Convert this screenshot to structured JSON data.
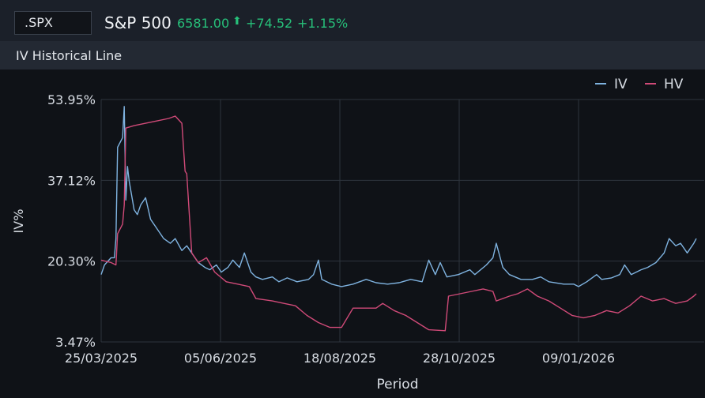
{
  "header": {
    "symbol": ".SPX",
    "name": "S&P 500",
    "price": "6581.00",
    "arrow": "⬆",
    "change": "+74.52",
    "change_pct": "+1.15%"
  },
  "panel": {
    "title": "IV Historical Line"
  },
  "colors": {
    "iv": "#7fb3e0",
    "hv": "#d04a78",
    "positive": "#27c07a",
    "grid": "#2e343d"
  },
  "chart_data": {
    "type": "line",
    "xlabel": "Period",
    "ylabel": "IV%",
    "x_ticks": [
      "25/03/2025",
      "05/06/2025",
      "18/08/2025",
      "28/10/2025",
      "09/01/2026"
    ],
    "y_ticks": [
      "53.95%",
      "37.12%",
      "20.30%",
      "3.47%"
    ],
    "ylim": [
      3.47,
      53.95
    ],
    "x_range": [
      "2025-03-25",
      "2026-03-25"
    ],
    "grid": true,
    "legend": "top-right",
    "series": [
      {
        "name": "IV",
        "color": "#7fb3e0",
        "points": [
          [
            "2025-03-25",
            17.5
          ],
          [
            "2025-03-27",
            19.5
          ],
          [
            "2025-03-31",
            21.0
          ],
          [
            "2025-04-02",
            21.0
          ],
          [
            "2025-04-03",
            25.0
          ],
          [
            "2025-04-04",
            44.0
          ],
          [
            "2025-04-07",
            46.0
          ],
          [
            "2025-04-08",
            52.5
          ],
          [
            "2025-04-09",
            33.0
          ],
          [
            "2025-04-10",
            40.0
          ],
          [
            "2025-04-11",
            37.0
          ],
          [
            "2025-04-14",
            31.0
          ],
          [
            "2025-04-16",
            30.0
          ],
          [
            "2025-04-18",
            32.0
          ],
          [
            "2025-04-21",
            33.5
          ],
          [
            "2025-04-24",
            29.0
          ],
          [
            "2025-04-28",
            27.0
          ],
          [
            "2025-05-02",
            25.0
          ],
          [
            "2025-05-06",
            24.0
          ],
          [
            "2025-05-09",
            25.0
          ],
          [
            "2025-05-13",
            22.5
          ],
          [
            "2025-05-16",
            23.5
          ],
          [
            "2025-05-20",
            21.5
          ],
          [
            "2025-05-23",
            20.0
          ],
          [
            "2025-05-27",
            19.0
          ],
          [
            "2025-05-30",
            18.5
          ],
          [
            "2025-06-03",
            19.5
          ],
          [
            "2025-06-06",
            18.0
          ],
          [
            "2025-06-10",
            19.0
          ],
          [
            "2025-06-13",
            20.5
          ],
          [
            "2025-06-17",
            19.0
          ],
          [
            "2025-06-20",
            22.0
          ],
          [
            "2025-06-24",
            18.0
          ],
          [
            "2025-06-27",
            17.0
          ],
          [
            "2025-07-01",
            16.5
          ],
          [
            "2025-07-07",
            17.0
          ],
          [
            "2025-07-11",
            16.0
          ],
          [
            "2025-07-16",
            16.8
          ],
          [
            "2025-07-22",
            16.0
          ],
          [
            "2025-07-29",
            16.5
          ],
          [
            "2025-08-01",
            17.5
          ],
          [
            "2025-08-04",
            20.5
          ],
          [
            "2025-08-06",
            16.5
          ],
          [
            "2025-08-12",
            15.5
          ],
          [
            "2025-08-18",
            15.0
          ],
          [
            "2025-08-25",
            15.5
          ],
          [
            "2025-09-02",
            16.5
          ],
          [
            "2025-09-08",
            15.8
          ],
          [
            "2025-09-15",
            15.5
          ],
          [
            "2025-09-22",
            15.8
          ],
          [
            "2025-09-29",
            16.5
          ],
          [
            "2025-10-06",
            16.0
          ],
          [
            "2025-10-10",
            20.5
          ],
          [
            "2025-10-14",
            17.5
          ],
          [
            "2025-10-17",
            20.0
          ],
          [
            "2025-10-21",
            17.0
          ],
          [
            "2025-10-28",
            17.5
          ],
          [
            "2025-11-04",
            18.5
          ],
          [
            "2025-11-07",
            17.5
          ],
          [
            "2025-11-14",
            19.5
          ],
          [
            "2025-11-18",
            21.0
          ],
          [
            "2025-11-20",
            24.0
          ],
          [
            "2025-11-24",
            19.0
          ],
          [
            "2025-11-28",
            17.5
          ],
          [
            "2025-12-05",
            16.5
          ],
          [
            "2025-12-12",
            16.5
          ],
          [
            "2025-12-17",
            17.0
          ],
          [
            "2025-12-22",
            16.0
          ],
          [
            "2025-12-31",
            15.5
          ],
          [
            "2026-01-06",
            15.5
          ],
          [
            "2026-01-09",
            15.0
          ],
          [
            "2026-01-14",
            16.0
          ],
          [
            "2026-01-20",
            17.5
          ],
          [
            "2026-01-23",
            16.5
          ],
          [
            "2026-01-29",
            16.8
          ],
          [
            "2026-02-03",
            17.5
          ],
          [
            "2026-02-06",
            19.5
          ],
          [
            "2026-02-10",
            17.5
          ],
          [
            "2026-02-16",
            18.5
          ],
          [
            "2026-02-20",
            19.0
          ],
          [
            "2026-02-25",
            20.0
          ],
          [
            "2026-03-02",
            22.0
          ],
          [
            "2026-03-05",
            25.0
          ],
          [
            "2026-03-09",
            23.5
          ],
          [
            "2026-03-12",
            24.0
          ],
          [
            "2026-03-16",
            22.0
          ],
          [
            "2026-03-20",
            24.0
          ],
          [
            "2026-03-25",
            25.0
          ]
        ]
      },
      {
        "name": "HV",
        "color": "#d04a78",
        "points": [
          [
            "2025-03-25",
            20.5
          ],
          [
            "2025-03-31",
            20.0
          ],
          [
            "2025-04-03",
            19.5
          ],
          [
            "2025-04-04",
            26.0
          ],
          [
            "2025-04-07",
            28.0
          ],
          [
            "2025-04-08",
            32.0
          ],
          [
            "2025-04-09",
            48.0
          ],
          [
            "2025-04-14",
            48.5
          ],
          [
            "2025-04-21",
            49.0
          ],
          [
            "2025-04-28",
            49.5
          ],
          [
            "2025-05-05",
            50.0
          ],
          [
            "2025-05-09",
            50.5
          ],
          [
            "2025-05-13",
            49.0
          ],
          [
            "2025-05-15",
            39.0
          ],
          [
            "2025-05-16",
            38.5
          ],
          [
            "2025-05-19",
            22.0
          ],
          [
            "2025-05-23",
            20.0
          ],
          [
            "2025-05-28",
            21.0
          ],
          [
            "2025-06-02",
            18.0
          ],
          [
            "2025-06-09",
            16.0
          ],
          [
            "2025-06-16",
            15.5
          ],
          [
            "2025-06-23",
            15.0
          ],
          [
            "2025-06-27",
            12.5
          ],
          [
            "2025-07-07",
            12.0
          ],
          [
            "2025-07-14",
            11.5
          ],
          [
            "2025-07-21",
            11.0
          ],
          [
            "2025-07-28",
            9.0
          ],
          [
            "2025-08-04",
            7.5
          ],
          [
            "2025-08-11",
            6.5
          ],
          [
            "2025-08-18",
            6.5
          ],
          [
            "2025-08-25",
            10.5
          ],
          [
            "2025-09-01",
            10.5
          ],
          [
            "2025-09-08",
            10.5
          ],
          [
            "2025-09-12",
            11.5
          ],
          [
            "2025-09-19",
            10.0
          ],
          [
            "2025-09-26",
            9.0
          ],
          [
            "2025-10-03",
            7.5
          ],
          [
            "2025-10-10",
            6.0
          ],
          [
            "2025-10-20",
            5.8
          ],
          [
            "2025-10-22",
            13.0
          ],
          [
            "2025-10-29",
            13.5
          ],
          [
            "2025-11-05",
            14.0
          ],
          [
            "2025-11-12",
            14.5
          ],
          [
            "2025-11-18",
            14.0
          ],
          [
            "2025-11-20",
            12.0
          ],
          [
            "2025-11-28",
            13.0
          ],
          [
            "2025-12-03",
            13.5
          ],
          [
            "2025-12-09",
            14.5
          ],
          [
            "2025-12-15",
            13.0
          ],
          [
            "2025-12-22",
            12.0
          ],
          [
            "2025-12-29",
            10.5
          ],
          [
            "2026-01-05",
            9.0
          ],
          [
            "2026-01-12",
            8.5
          ],
          [
            "2026-01-19",
            9.0
          ],
          [
            "2026-01-26",
            10.0
          ],
          [
            "2026-02-02",
            9.5
          ],
          [
            "2026-02-09",
            11.0
          ],
          [
            "2026-02-16",
            13.0
          ],
          [
            "2026-02-23",
            12.0
          ],
          [
            "2026-03-02",
            12.5
          ],
          [
            "2026-03-09",
            11.5
          ],
          [
            "2026-03-16",
            12.0
          ],
          [
            "2026-03-20",
            13.0
          ],
          [
            "2026-03-25",
            13.5
          ]
        ]
      }
    ]
  }
}
